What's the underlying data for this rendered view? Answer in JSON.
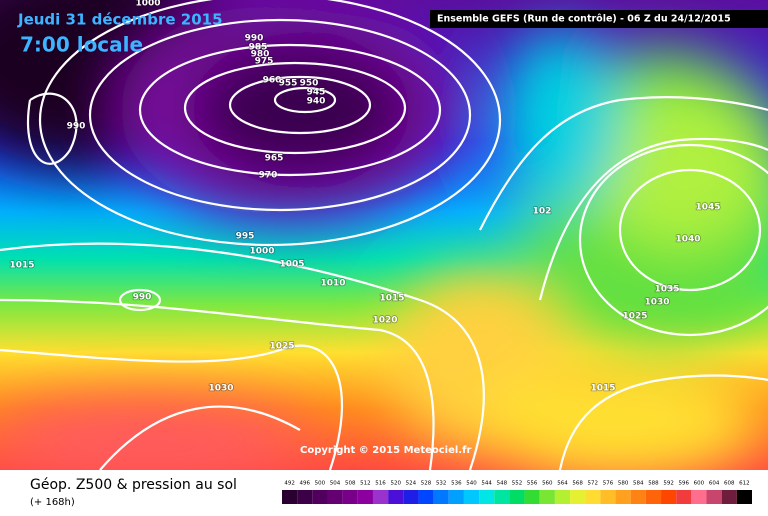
{
  "header": {
    "date": "Jeudi 31 décembre 2015",
    "time": "7:00 locale",
    "model": "Ensemble GEFS  (Run de contrôle)  -  06 Z du 24/12/2015"
  },
  "map": {
    "isobar_labels": [
      1000,
      990,
      985,
      980,
      975,
      960,
      955,
      950,
      945,
      940,
      990,
      965,
      970,
      995,
      1000,
      1005,
      1010,
      1015,
      990,
      1015,
      1020,
      1025,
      1030,
      102,
      1045,
      1040,
      1035,
      1030,
      1025,
      1015
    ],
    "copyright": "Copyright © 2015 Meteociel.fr"
  },
  "footer": {
    "title": "Géop. Z500 & pression au sol",
    "lead": "(+ 168h)"
  },
  "legend": {
    "values": [
      492,
      496,
      500,
      504,
      508,
      512,
      516,
      520,
      524,
      528,
      532,
      536,
      540,
      544,
      548,
      552,
      556,
      560,
      564,
      568,
      572,
      576,
      580,
      584,
      588,
      592,
      596,
      600,
      604,
      608,
      612
    ],
    "colors": [
      "#2a0030",
      "#3c0046",
      "#50005c",
      "#640072",
      "#780088",
      "#8c00a0",
      "#9a32cd",
      "#4b0fd8",
      "#1e1ee6",
      "#0046ff",
      "#0078ff",
      "#00a0ff",
      "#00c8ff",
      "#00e6e6",
      "#00e6a0",
      "#00dc64",
      "#32dc32",
      "#78e632",
      "#b4f032",
      "#e6f032",
      "#ffdc32",
      "#ffbe28",
      "#ffa01e",
      "#ff8214",
      "#ff640a",
      "#ff4600",
      "#f03c3c",
      "#ff6e8c",
      "#c8466e",
      "#6e1e3c",
      "#000000"
    ]
  }
}
